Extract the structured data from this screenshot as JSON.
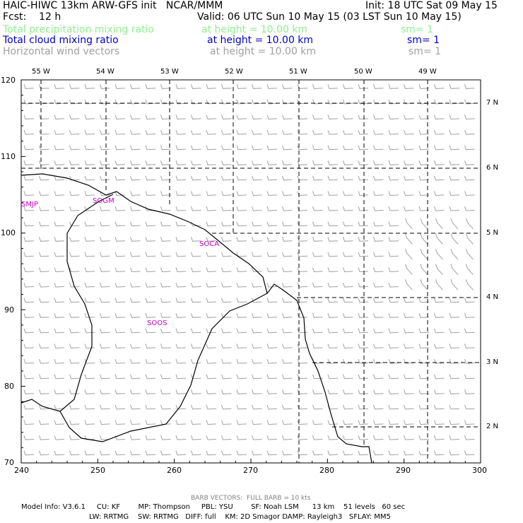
{
  "header": {
    "line1_left": "HAIC-HIWC 13km ARW-GFS init   NCAR/MMM",
    "line1_right": "Init: 18 UTC Sat 09 May 15",
    "line2_left": "Fcst:    12 h",
    "line2_right": "Valid: 06 UTC Sun 10 May 15 (03 LST Sun 10 May 15)",
    "fields": [
      {
        "name": "Total precipitation mixing ratio",
        "height": "at height = 10.00 km",
        "sm": "sm= 1",
        "color": "#90ee90"
      },
      {
        "name": "Total cloud mixing ratio",
        "height": "at height = 10.00 km",
        "sm": "sm= 1",
        "color": "#0000c8"
      },
      {
        "name": "Horizontal wind vectors",
        "height": "at height = 10.00 km",
        "sm": "sm= 1",
        "color": "#a0a0a0"
      }
    ]
  },
  "map": {
    "x_ticks": [
      "240",
      "250",
      "260",
      "270",
      "280",
      "290",
      "300"
    ],
    "y_ticks": [
      "70",
      "80",
      "90",
      "100",
      "110",
      "120"
    ],
    "lon_labels": [
      "55 W",
      "54 W",
      "53 W",
      "52 W",
      "51 W",
      "50 W",
      "49 W"
    ],
    "lat_labels": [
      "7 N",
      "6 N",
      "5 N",
      "4 N",
      "3 N",
      "2 N"
    ],
    "sites": [
      "SMJP",
      "SOGM",
      "SOCA",
      "SOOS"
    ]
  },
  "footer": {
    "barb_note": "BARB VECTORS:  FULL BARB = 10 kts",
    "line1": "Model Info: V3.6.1     CU: KF        MP: Thompson     PBL: YSU        SF: Noah LSM      13 km    51 levels   60 sec",
    "line2": "LW: RRTMG    SW: RRTMG   DIFF: full    KM: 2D Smagor DAMP: Rayleigh3   SFLAY: MM5"
  }
}
